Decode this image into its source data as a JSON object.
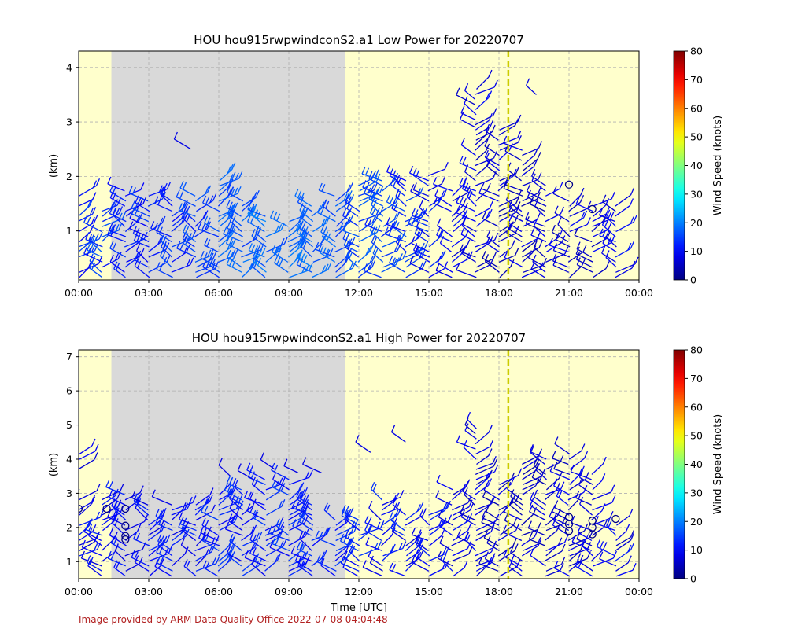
{
  "credit": "Image provided by ARM Data Quality Office 2022-07-08 04:04:48",
  "colors": {
    "daylight": "#ffffcc",
    "night": "#d9d9d9",
    "grid": "#b0b0b0",
    "marker_line": "#cccc00"
  },
  "chart_data": [
    {
      "type": "wind-barb",
      "title": "HOU hou915rwpwindconS2.a1 Low Power for 20220707",
      "xlabel": "",
      "ylabel": "(km)",
      "x_ticks": [
        "00:00",
        "03:00",
        "06:00",
        "09:00",
        "12:00",
        "15:00",
        "18:00",
        "21:00",
        "00:00"
      ],
      "xlim_hours": [
        0,
        24
      ],
      "y_ticks": [
        "1",
        "2",
        "3",
        "4"
      ],
      "ylim_km": [
        0.1,
        4.3
      ],
      "night_shading_hours": [
        1.4,
        11.4
      ],
      "marker_line_hour": 18.4,
      "grid": true,
      "colorbar": {
        "label": "Wind Speed (knots)",
        "ticks": [
          "0",
          "10",
          "20",
          "30",
          "40",
          "50",
          "60",
          "70",
          "80"
        ],
        "range": [
          0,
          80
        ],
        "colormap": "jet"
      },
      "columns": [
        {
          "h": 0.0,
          "top": 1.8,
          "spd": 12
        },
        {
          "h": 1.0,
          "top": 1.4,
          "spd": 14
        },
        {
          "h": 2.0,
          "top": 1.8,
          "spd": 12
        },
        {
          "h": 3.0,
          "top": 1.7,
          "spd": 12
        },
        {
          "h": 4.0,
          "top": 1.6,
          "spd": 13
        },
        {
          "h": 5.0,
          "top": 1.7,
          "spd": 14
        },
        {
          "h": 6.0,
          "top": 2.0,
          "spd": 16
        },
        {
          "h": 7.0,
          "top": 1.6,
          "spd": 17
        },
        {
          "h": 8.0,
          "top": 1.3,
          "spd": 18
        },
        {
          "h": 9.0,
          "top": 1.2,
          "spd": 18
        },
        {
          "h": 10.0,
          "top": 1.5,
          "spd": 17
        },
        {
          "h": 11.0,
          "top": 1.7,
          "spd": 16
        },
        {
          "h": 12.0,
          "top": 1.9,
          "spd": 15
        },
        {
          "h": 13.0,
          "top": 2.0,
          "spd": 14
        },
        {
          "h": 14.0,
          "top": 2.0,
          "spd": 13
        },
        {
          "h": 15.0,
          "top": 2.1,
          "spd": 11
        },
        {
          "h": 16.0,
          "top": 1.8,
          "spd": 9
        },
        {
          "h": 17.0,
          "top": 3.6,
          "spd": 8
        },
        {
          "h": 18.0,
          "top": 2.9,
          "spd": 7
        },
        {
          "h": 19.0,
          "top": 2.5,
          "spd": 7
        },
        {
          "h": 20.0,
          "top": 1.9,
          "spd": 7
        },
        {
          "h": 21.0,
          "top": 1.6,
          "spd": 8
        },
        {
          "h": 22.0,
          "top": 1.5,
          "spd": 8
        },
        {
          "h": 23.0,
          "top": 1.5,
          "spd": 9
        }
      ],
      "calm_points": [
        {
          "h": 21.0,
          "km": 1.85
        },
        {
          "h": 22.0,
          "km": 1.4
        }
      ],
      "isolated": [
        {
          "h": 4.8,
          "km": 2.5
        },
        {
          "h": 19.6,
          "km": 3.5
        },
        {
          "h": 17.0,
          "km": 2.9
        }
      ]
    },
    {
      "type": "wind-barb",
      "title": "HOU hou915rwpwindconS2.a1 High Power for 20220707",
      "xlabel": "Time [UTC]",
      "ylabel": "(km)",
      "x_ticks": [
        "00:00",
        "03:00",
        "06:00",
        "09:00",
        "12:00",
        "15:00",
        "18:00",
        "21:00",
        "00:00"
      ],
      "xlim_hours": [
        0,
        24
      ],
      "y_ticks": [
        "1",
        "2",
        "3",
        "4",
        "5",
        "6",
        "7"
      ],
      "ylim_km": [
        0.5,
        7.2
      ],
      "night_shading_hours": [
        1.4,
        11.4
      ],
      "marker_line_hour": 18.4,
      "grid": true,
      "colorbar": {
        "label": "Wind Speed (knots)",
        "ticks": [
          "0",
          "10",
          "20",
          "30",
          "40",
          "50",
          "60",
          "70",
          "80"
        ],
        "range": [
          0,
          80
        ],
        "colormap": "jet"
      },
      "columns": [
        {
          "h": 0.0,
          "top": 4.3,
          "spd": 10
        },
        {
          "h": 1.0,
          "top": 2.9,
          "spd": 10
        },
        {
          "h": 2.0,
          "top": 3.0,
          "spd": 10
        },
        {
          "h": 3.0,
          "top": 2.8,
          "spd": 10
        },
        {
          "h": 4.0,
          "top": 2.8,
          "spd": 11
        },
        {
          "h": 5.0,
          "top": 2.8,
          "spd": 11
        },
        {
          "h": 6.0,
          "top": 3.0,
          "spd": 12
        },
        {
          "h": 7.0,
          "top": 3.2,
          "spd": 12
        },
        {
          "h": 8.0,
          "top": 3.5,
          "spd": 12
        },
        {
          "h": 9.0,
          "top": 3.5,
          "spd": 12
        },
        {
          "h": 10.0,
          "top": 2.8,
          "spd": 12
        },
        {
          "h": 11.0,
          "top": 2.3,
          "spd": 12
        },
        {
          "h": 12.0,
          "top": 2.3,
          "spd": 12
        },
        {
          "h": 13.0,
          "top": 2.9,
          "spd": 11
        },
        {
          "h": 14.0,
          "top": 2.4,
          "spd": 11
        },
        {
          "h": 15.0,
          "top": 2.5,
          "spd": 10
        },
        {
          "h": 16.0,
          "top": 3.2,
          "spd": 9
        },
        {
          "h": 17.0,
          "top": 4.9,
          "spd": 8
        },
        {
          "h": 18.0,
          "top": 3.4,
          "spd": 7
        },
        {
          "h": 19.0,
          "top": 3.9,
          "spd": 7
        },
        {
          "h": 20.0,
          "top": 4.1,
          "spd": 7
        },
        {
          "h": 21.0,
          "top": 4.2,
          "spd": 8
        },
        {
          "h": 22.0,
          "top": 3.6,
          "spd": 8
        },
        {
          "h": 23.0,
          "top": 2.2,
          "spd": 9
        }
      ],
      "calm_points": [
        {
          "h": 0.0,
          "km": 2.55
        },
        {
          "h": 1.2,
          "km": 2.55
        },
        {
          "h": 2.0,
          "km": 2.55
        },
        {
          "h": 2.0,
          "km": 2.05
        },
        {
          "h": 2.0,
          "km": 1.75
        },
        {
          "h": 2.0,
          "km": 1.65
        },
        {
          "h": 21.0,
          "km": 2.3
        },
        {
          "h": 21.0,
          "km": 2.1
        },
        {
          "h": 21.0,
          "km": 1.9
        },
        {
          "h": 22.0,
          "km": 2.2
        },
        {
          "h": 22.0,
          "km": 2.0
        },
        {
          "h": 22.0,
          "km": 1.8
        },
        {
          "h": 23.0,
          "km": 2.25
        }
      ],
      "isolated": [
        {
          "h": 6.5,
          "km": 3.5
        },
        {
          "h": 7.5,
          "km": 3.4
        },
        {
          "h": 8.4,
          "km": 3.7
        },
        {
          "h": 9.4,
          "km": 3.6
        },
        {
          "h": 10.4,
          "km": 3.6
        },
        {
          "h": 12.5,
          "km": 4.2
        },
        {
          "h": 14.0,
          "km": 4.5
        }
      ]
    }
  ]
}
